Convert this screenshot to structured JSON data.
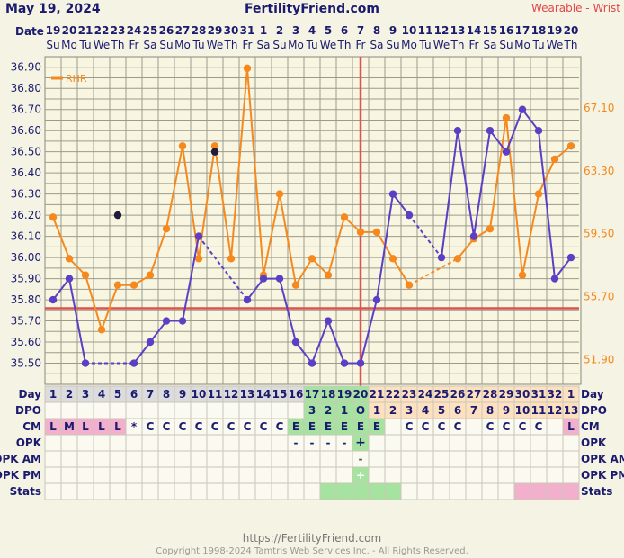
{
  "chart_data": {
    "type": "line",
    "title": "FertilityFriend.com",
    "chart_date": "May 19, 2024",
    "device": "Wearable - Wrist",
    "footer_url": "https://FertilityFriend.com",
    "footer_copyright": "Copyright 1998-2024 Tamtris Web Services Inc. - All Rights Reserved.",
    "date_label": "Date",
    "dates": [
      "19",
      "20",
      "21",
      "22",
      "23",
      "24",
      "25",
      "26",
      "27",
      "28",
      "29",
      "30",
      "31",
      "1",
      "2",
      "3",
      "4",
      "5",
      "6",
      "7",
      "8",
      "9",
      "10",
      "11",
      "12",
      "13",
      "14",
      "15",
      "16",
      "17",
      "18",
      "19",
      "20"
    ],
    "weekdays": [
      "Su",
      "Mo",
      "Tu",
      "We",
      "Th",
      "Fr",
      "Sa",
      "Su",
      "Mo",
      "Tu",
      "We",
      "Th",
      "Fr",
      "Sa",
      "Su",
      "Mo",
      "Tu",
      "We",
      "Th",
      "Fr",
      "Sa",
      "Su",
      "Mo",
      "Tu",
      "We",
      "Th",
      "Fr",
      "Sa",
      "Su",
      "Mo",
      "Tu",
      "We",
      "Th"
    ],
    "cycle_days": [
      1,
      2,
      3,
      4,
      5,
      6,
      7,
      8,
      9,
      10,
      11,
      12,
      13,
      14,
      15,
      16,
      17,
      18,
      19,
      20,
      21,
      22,
      23,
      24,
      25,
      26,
      27,
      28,
      29,
      30,
      31,
      32,
      1
    ],
    "temp_axis": {
      "ticks": [
        "36.90",
        "36.80",
        "36.70",
        "36.60",
        "36.50",
        "36.40",
        "36.30",
        "36.20",
        "36.10",
        "36.00",
        "35.90",
        "35.80",
        "35.70",
        "35.60",
        "35.50"
      ],
      "min": 35.4,
      "max": 36.95
    },
    "rhr_axis": {
      "ticks": [
        "67.10",
        "63.30",
        "59.50",
        "55.70",
        "51.90"
      ],
      "min": 50.4,
      "max": 70.2
    },
    "temperature": [
      35.8,
      35.9,
      35.5,
      null,
      null,
      35.5,
      35.6,
      35.7,
      35.7,
      36.1,
      null,
      null,
      35.8,
      35.9,
      35.9,
      35.6,
      35.5,
      35.7,
      35.5,
      35.5,
      35.8,
      36.3,
      36.2,
      null,
      36.0,
      36.6,
      36.1,
      36.6,
      36.5,
      36.7,
      36.6,
      35.9,
      36.0
    ],
    "temp_discarded": [
      null,
      null,
      null,
      null,
      36.2,
      null,
      null,
      null,
      null,
      null,
      36.5,
      null,
      null,
      null,
      null,
      null,
      null,
      null,
      null,
      null,
      null,
      null,
      null,
      null,
      null,
      null,
      null,
      null,
      null,
      null,
      null,
      null,
      null
    ],
    "rhr_legend": "RHR",
    "rhr": [
      60.5,
      58.0,
      57.0,
      53.7,
      56.4,
      56.4,
      57.0,
      59.8,
      64.8,
      58.0,
      64.8,
      58.0,
      69.5,
      57.0,
      61.9,
      56.4,
      58.0,
      57.0,
      60.5,
      59.6,
      59.6,
      58.0,
      56.4,
      null,
      null,
      58.0,
      59.2,
      59.8,
      66.5,
      57.0,
      61.9,
      64.0,
      64.8
    ],
    "coverline": 35.76,
    "ovulation_day_index": 19,
    "row_labels": {
      "day": "Day",
      "dpo": "DPO",
      "cm": "CM",
      "opk": "OPK",
      "opk_am": "OPK AM",
      "opk_pm": "OPK PM",
      "stats": "Stats"
    },
    "dpo": [
      "",
      "",
      "",
      "",
      "",
      "",
      "",
      "",
      "",
      "",
      "",
      "",
      "",
      "",
      "",
      "",
      "3",
      "2",
      "1",
      "O",
      "1",
      "2",
      "3",
      "4",
      "5",
      "6",
      "7",
      "8",
      "9",
      "10",
      "11",
      "12",
      "13"
    ],
    "cm": [
      "L",
      "M",
      "L",
      "L",
      "L",
      "*",
      "C",
      "C",
      "C",
      "C",
      "C",
      "C",
      "C",
      "C",
      "C",
      "E",
      "E",
      "E",
      "E",
      "E",
      "E",
      "",
      "C",
      "C",
      "C",
      "C",
      "",
      "C",
      "C",
      "C",
      "C",
      "",
      "L"
    ],
    "opk": [
      "",
      "",
      "",
      "",
      "",
      "",
      "",
      "",
      "",
      "",
      "",
      "",
      "",
      "",
      "",
      "-",
      "-",
      "-",
      "-",
      "+",
      "",
      "",
      "",
      "",
      "",
      "",
      "",
      "",
      "",
      "",
      "",
      "",
      ""
    ],
    "opk_am": [
      "",
      "",
      "",
      "",
      "",
      "",
      "",
      "",
      "",
      "",
      "",
      "",
      "",
      "",
      "",
      "",
      "",
      "",
      "",
      "-",
      "",
      "",
      "",
      "",
      "",
      "",
      "",
      "",
      "",
      "",
      "",
      "",
      ""
    ],
    "opk_pm": [
      "",
      "",
      "",
      "",
      "",
      "",
      "",
      "",
      "",
      "",
      "",
      "",
      "",
      "",
      "",
      "",
      "",
      "",
      "",
      "+",
      "",
      "",
      "",
      "",
      "",
      "",
      "",
      "",
      "",
      "",
      "",
      "",
      ""
    ],
    "stats": [
      "",
      "",
      "",
      "",
      "",
      "",
      "",
      "",
      "",
      "",
      "",
      "",
      "",
      "",
      "",
      "",
      "",
      "g",
      "g",
      "g",
      "g",
      "g",
      "",
      "",
      "",
      "",
      "",
      "",
      "",
      "p",
      "p",
      "p",
      "p"
    ],
    "colors": {
      "temp": "#5b3fc4",
      "rhr": "#f5891f",
      "coverline": "#d9534f",
      "ovulation": "#d9534f",
      "grid": "#9c9a8c",
      "plot_bg": "#f8f6e0",
      "fertile_green": "#a6e3a0",
      "dpo_peach": "#fde0c0",
      "menses_pink": "#f2b0cc",
      "day_header": "#dcdcdc"
    }
  }
}
